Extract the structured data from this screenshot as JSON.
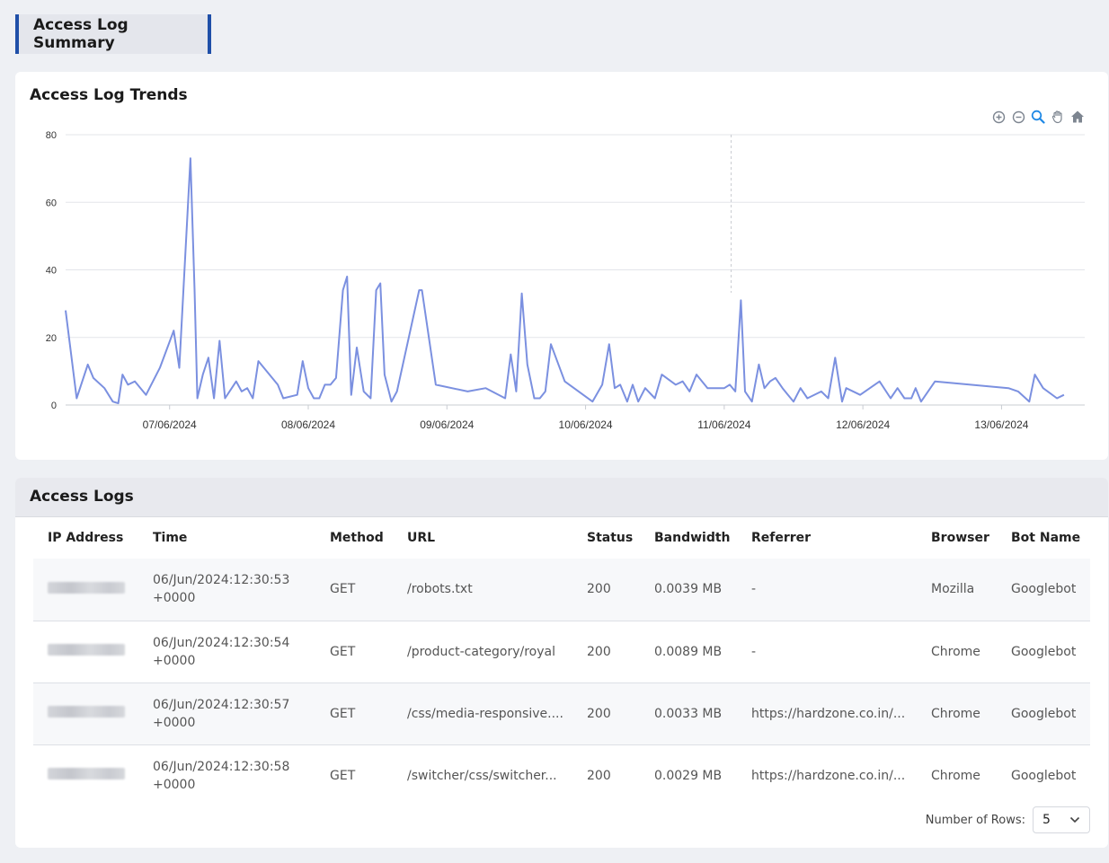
{
  "page": {
    "title": "Access Log Summary"
  },
  "trends": {
    "title": "Access Log Trends",
    "toolbar": [
      {
        "name": "zoom-in-icon"
      },
      {
        "name": "zoom-out-icon"
      },
      {
        "name": "zoom-select-icon"
      },
      {
        "name": "pan-icon"
      },
      {
        "name": "home-icon"
      }
    ],
    "colors": {
      "line": "#7b90e0",
      "grid": "#e3e5ea",
      "crosshair": "#c8cad0",
      "active_tool": "#1e88e5",
      "tool": "#7d8590"
    }
  },
  "chart_data": {
    "type": "line",
    "series": [
      {
        "values": [
          [
            6.25,
            28
          ],
          [
            6.33,
            2
          ],
          [
            6.41,
            12
          ],
          [
            6.45,
            8
          ],
          [
            6.53,
            5
          ],
          [
            6.59,
            1
          ],
          [
            6.63,
            0.5
          ],
          [
            6.66,
            9
          ],
          [
            6.7,
            6
          ],
          [
            6.75,
            7
          ],
          [
            6.83,
            3
          ],
          [
            6.93,
            11
          ],
          [
            7.03,
            22
          ],
          [
            7.07,
            11
          ],
          [
            7.1,
            34
          ],
          [
            7.15,
            73
          ],
          [
            7.18,
            34
          ],
          [
            7.2,
            2
          ],
          [
            7.24,
            9
          ],
          [
            7.28,
            14
          ],
          [
            7.32,
            2
          ],
          [
            7.36,
            19
          ],
          [
            7.4,
            2
          ],
          [
            7.48,
            7
          ],
          [
            7.52,
            4
          ],
          [
            7.56,
            5
          ],
          [
            7.6,
            2
          ],
          [
            7.64,
            13
          ],
          [
            7.78,
            6
          ],
          [
            7.82,
            2
          ],
          [
            7.92,
            3
          ],
          [
            7.96,
            13
          ],
          [
            8,
            5
          ],
          [
            8.04,
            2
          ],
          [
            8.08,
            2
          ],
          [
            8.12,
            6
          ],
          [
            8.16,
            6
          ],
          [
            8.2,
            8
          ],
          [
            8.25,
            34
          ],
          [
            8.28,
            38
          ],
          [
            8.31,
            3
          ],
          [
            8.35,
            17
          ],
          [
            8.4,
            4
          ],
          [
            8.45,
            2
          ],
          [
            8.49,
            34
          ],
          [
            8.52,
            36
          ],
          [
            8.55,
            9
          ],
          [
            8.6,
            1
          ],
          [
            8.64,
            4
          ],
          [
            8.8,
            34
          ],
          [
            8.82,
            34
          ],
          [
            8.92,
            6
          ],
          [
            9.15,
            4
          ],
          [
            9.28,
            5
          ],
          [
            9.42,
            2
          ],
          [
            9.46,
            15
          ],
          [
            9.5,
            4
          ],
          [
            9.54,
            33
          ],
          [
            9.58,
            12
          ],
          [
            9.63,
            2
          ],
          [
            9.67,
            2
          ],
          [
            9.71,
            4
          ],
          [
            9.75,
            18
          ],
          [
            9.85,
            7
          ],
          [
            10.05,
            1
          ],
          [
            10.12,
            6
          ],
          [
            10.17,
            18
          ],
          [
            10.21,
            5
          ],
          [
            10.25,
            6
          ],
          [
            10.3,
            1
          ],
          [
            10.34,
            6
          ],
          [
            10.38,
            1
          ],
          [
            10.43,
            5
          ],
          [
            10.5,
            2
          ],
          [
            10.55,
            9
          ],
          [
            10.65,
            6
          ],
          [
            10.7,
            7
          ],
          [
            10.75,
            4
          ],
          [
            10.8,
            9
          ],
          [
            10.88,
            5
          ],
          [
            11,
            5
          ],
          [
            11.04,
            6
          ],
          [
            11.08,
            4
          ],
          [
            11.12,
            31
          ],
          [
            11.15,
            4
          ],
          [
            11.2,
            1
          ],
          [
            11.25,
            12
          ],
          [
            11.29,
            5
          ],
          [
            11.33,
            7
          ],
          [
            11.37,
            8
          ],
          [
            11.42,
            5
          ],
          [
            11.46,
            3
          ],
          [
            11.5,
            1
          ],
          [
            11.55,
            5
          ],
          [
            11.6,
            2
          ],
          [
            11.7,
            4
          ],
          [
            11.75,
            2
          ],
          [
            11.8,
            14
          ],
          [
            11.85,
            1
          ],
          [
            11.88,
            5
          ],
          [
            11.98,
            3
          ],
          [
            12.12,
            7
          ],
          [
            12.2,
            2
          ],
          [
            12.25,
            5
          ],
          [
            12.3,
            2
          ],
          [
            12.35,
            2
          ],
          [
            12.38,
            5
          ],
          [
            12.42,
            1
          ],
          [
            12.52,
            7
          ],
          [
            13.05,
            5
          ],
          [
            13.12,
            4
          ],
          [
            13.2,
            1
          ],
          [
            13.24,
            9
          ],
          [
            13.3,
            5
          ],
          [
            13.4,
            2
          ],
          [
            13.45,
            3
          ]
        ]
      }
    ],
    "x_ticks": [
      "07/06/2024",
      "08/06/2024",
      "09/06/2024",
      "10/06/2024",
      "11/06/2024",
      "12/06/2024",
      "13/06/2024"
    ],
    "y_ticks": [
      0,
      20,
      40,
      60,
      80
    ],
    "xlim": [
      6.25,
      13.6
    ],
    "ylim": [
      0,
      80
    ],
    "grid": true,
    "crosshair_x": 11.05
  },
  "logs": {
    "title": "Access Logs",
    "columns": [
      "IP Address",
      "Time",
      "Method",
      "URL",
      "Status",
      "Bandwidth",
      "Referrer",
      "Browser",
      "Bot Name"
    ],
    "rows": [
      {
        "time1": "06/Jun/2024:12:30:53",
        "time2": "+0000",
        "method": "GET",
        "url": "/robots.txt",
        "status": "200",
        "bandwidth": "0.0039 MB",
        "referrer": "-",
        "browser": "Mozilla",
        "bot": "Googlebot"
      },
      {
        "time1": "06/Jun/2024:12:30:54",
        "time2": "+0000",
        "method": "GET",
        "url": "/product-category/royal",
        "status": "200",
        "bandwidth": "0.0089 MB",
        "referrer": "-",
        "browser": "Chrome",
        "bot": "Googlebot"
      },
      {
        "time1": "06/Jun/2024:12:30:57",
        "time2": "+0000",
        "method": "GET",
        "url": "/css/media-responsive....",
        "status": "200",
        "bandwidth": "0.0033 MB",
        "referrer": "https://hardzone.co.in/...",
        "browser": "Chrome",
        "bot": "Googlebot"
      },
      {
        "time1": "06/Jun/2024:12:30:58",
        "time2": "+0000",
        "method": "GET",
        "url": "/switcher/css/switcher...",
        "status": "200",
        "bandwidth": "0.0029 MB",
        "referrer": "https://hardzone.co.in/...",
        "browser": "Chrome",
        "bot": "Googlebot"
      }
    ],
    "rows_label": "Number of Rows:",
    "rows_value": "5"
  }
}
